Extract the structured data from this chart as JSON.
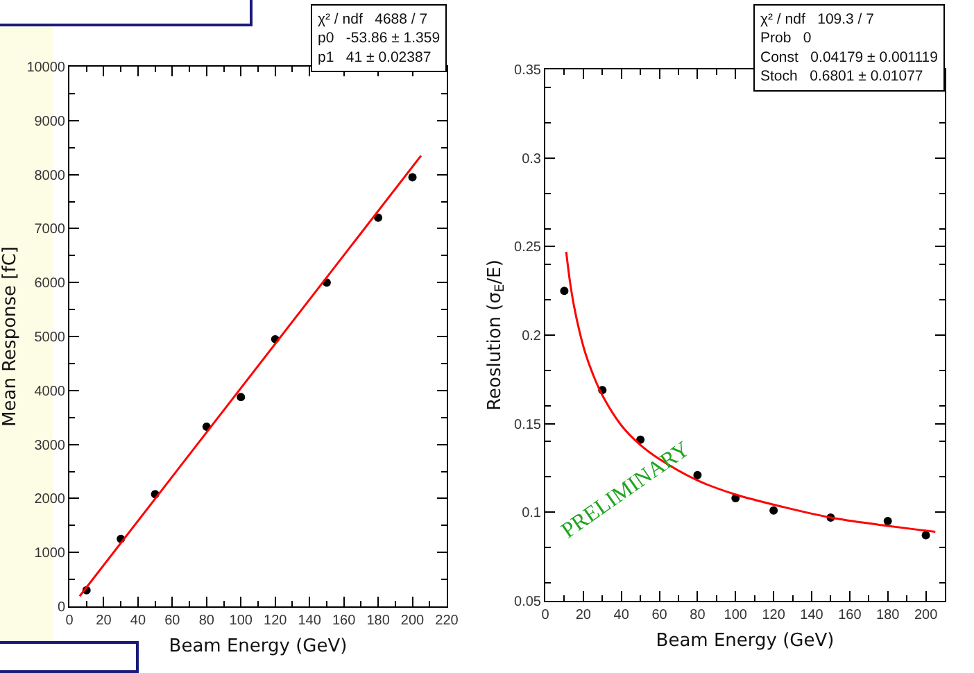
{
  "chart_data": [
    {
      "type": "scatter",
      "xlabel": "Beam Energy (GeV)",
      "ylabel": "Mean Response [fC]",
      "xlim": [
        0,
        220
      ],
      "xticks": [
        0,
        20,
        40,
        60,
        80,
        100,
        120,
        140,
        160,
        180,
        200,
        220
      ],
      "ylim": [
        0,
        10000
      ],
      "yticks": [
        0,
        1000,
        2000,
        3000,
        4000,
        5000,
        6000,
        7000,
        8000,
        9000,
        10000
      ],
      "grid": false,
      "x": [
        10,
        30,
        50,
        80,
        100,
        120,
        150,
        180,
        200
      ],
      "series": [
        {
          "type": "scatter",
          "marker": "circle",
          "color": "#000000",
          "values": [
            300,
            1250,
            2080,
            3330,
            3880,
            4950,
            6000,
            7200,
            7950
          ]
        },
        {
          "type": "line",
          "color": "#ff0000",
          "x": [
            6,
            205
          ],
          "values": [
            190,
            8350
          ]
        }
      ],
      "annotations": [
        "χ² / ndf   4688 / 7",
        "p0   -53.86 ± 1.359",
        "p1   41 ± 0.02387"
      ]
    },
    {
      "type": "scatter",
      "xlabel": "Beam Energy (GeV)",
      "ylabel": "Reoslution (σ$_{E}$/E)",
      "xlim": [
        0,
        210
      ],
      "xticks": [
        0,
        20,
        40,
        60,
        80,
        100,
        120,
        140,
        160,
        180,
        200
      ],
      "ylim": [
        0.05,
        0.35
      ],
      "yticks": [
        0.05,
        0.1,
        0.15,
        0.2,
        0.25,
        0.3,
        0.35
      ],
      "grid": false,
      "x": [
        10,
        30,
        50,
        80,
        100,
        120,
        150,
        180,
        200
      ],
      "series": [
        {
          "type": "scatter",
          "marker": "circle",
          "color": "#000000",
          "values": [
            0.225,
            0.169,
            0.141,
            0.121,
            0.108,
            0.101,
            0.097,
            0.095,
            0.087
          ]
        },
        {
          "type": "line",
          "color": "#ff0000",
          "x": [
            11,
            13,
            15,
            18,
            21,
            25,
            30,
            40,
            50,
            60,
            80,
            100,
            125,
            150,
            175,
            205
          ],
          "values": [
            0.247,
            0.23,
            0.217,
            0.202,
            0.19,
            0.178,
            0.166,
            0.149,
            0.138,
            0.13,
            0.118,
            0.11,
            0.103,
            0.097,
            0.093,
            0.089
          ]
        }
      ],
      "annotations": [
        "χ² / ndf   109.3 / 7",
        "Prob   0",
        "Const   0.04179 ± 0.001119",
        "Stoch   0.6801 ± 0.01077",
        {
          "text": "PRELIMINARY"
        }
      ]
    }
  ]
}
